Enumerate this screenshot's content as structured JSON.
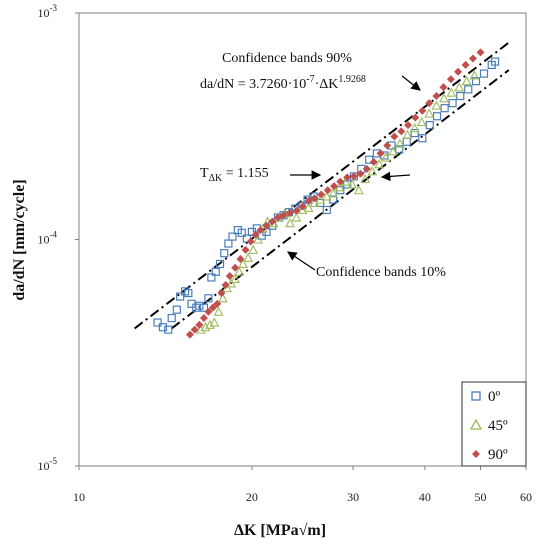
{
  "chart_data": {
    "type": "scatter",
    "xlabel": "ΔK [MPa√m]",
    "ylabel": "da/dN [mm/cycle]",
    "x_scale": "log",
    "y_scale": "log",
    "xlim": [
      10,
      60
    ],
    "ylim": [
      1e-05,
      0.001
    ],
    "x_ticks": [
      {
        "value": 10,
        "label": "10"
      },
      {
        "value": 20,
        "label": "20"
      },
      {
        "value": 30,
        "label": "30"
      },
      {
        "value": 40,
        "label": "40"
      },
      {
        "value": 50,
        "label": "50"
      },
      {
        "value": 60,
        "label": "60"
      }
    ],
    "y_ticks": [
      {
        "value": 1e-05,
        "base": "10",
        "exp": "-5"
      },
      {
        "value": 0.0001,
        "base": "10",
        "exp": "-4"
      },
      {
        "value": 0.001,
        "base": "10",
        "exp": "-3"
      }
    ],
    "grid": false,
    "legend_position": "bottom-right",
    "annotations": {
      "conf90": "Confidence bands 90%",
      "equation_prefix": "da/dN = 3.7260·10",
      "equation_exp1": "-7",
      "equation_mid": "·ΔK",
      "equation_exp2": "1.9268",
      "t_prefix": "T",
      "t_sub": "ΔK",
      "t_value": " = 1.155",
      "conf10": "Confidence bands 10%"
    },
    "lines": [
      {
        "name": "90%",
        "style": "dash-dot",
        "x": [
          12.5,
          56
        ],
        "y": [
          4.05e-05,
          0.00074
        ]
      },
      {
        "name": "10%",
        "style": "dash-dot",
        "x": [
          14.5,
          56
        ],
        "y": [
          4.05e-05,
          0.00056
        ]
      }
    ],
    "series": [
      {
        "name": "0º",
        "marker": "square",
        "color": "#4a7ebb",
        "x": [
          13.7,
          14.0,
          14.3,
          14.5,
          14.8,
          15.0,
          15.3,
          15.5,
          15.7,
          16.0,
          16.2,
          16.5,
          16.8,
          17.0,
          17.3,
          17.6,
          17.9,
          18.2,
          18.5,
          18.9,
          19.2,
          19.6,
          20.0,
          20.4,
          20.8,
          21.2,
          21.7,
          22.2,
          22.7,
          23.2,
          23.8,
          24.4,
          25.0,
          25.6,
          26.3,
          27.0,
          27.7,
          28.5,
          29.3,
          30.1,
          31.0,
          32.0,
          33.0,
          34.0,
          35.0,
          36.1,
          37.2,
          38.4,
          39.6,
          40.8,
          42.0,
          43.3,
          44.7,
          46.1,
          47.6,
          49.1,
          50.7,
          52.3,
          53.0
        ],
        "y": [
          4.3e-05,
          4.1e-05,
          4e-05,
          4.5e-05,
          4.9e-05,
          5.6e-05,
          5.9e-05,
          5.8e-05,
          5.2e-05,
          5e-05,
          5.1e-05,
          5e-05,
          5.5e-05,
          6.8e-05,
          7.2e-05,
          7.8e-05,
          8.7e-05,
          9.6e-05,
          0.000103,
          0.00011,
          0.000107,
          0.000101,
          0.000108,
          0.000112,
          0.000104,
          0.000108,
          0.000115,
          0.000125,
          0.000128,
          0.000132,
          0.000137,
          0.000141,
          0.00015,
          0.000155,
          0.000145,
          0.000135,
          0.00015,
          0.000165,
          0.000175,
          0.00019,
          0.000205,
          0.000225,
          0.00024,
          0.000235,
          0.00026,
          0.00025,
          0.00027,
          0.000295,
          0.00028,
          0.00032,
          0.00035,
          0.00038,
          0.0004,
          0.00043,
          0.00046,
          0.0005,
          0.00054,
          0.00059,
          0.00061
        ]
      },
      {
        "name": "45º",
        "marker": "triangle",
        "color": "#9bbb59",
        "x": [
          16.3,
          16.6,
          16.9,
          17.2,
          17.5,
          17.8,
          18.1,
          18.4,
          18.7,
          19.0,
          19.3,
          19.7,
          20.1,
          20.5,
          20.9,
          21.3,
          21.8,
          22.3,
          22.8,
          23.3,
          23.9,
          24.5,
          25.1,
          25.7,
          26.3,
          27.0,
          27.7,
          28.4,
          29.1,
          29.9,
          30.7,
          31.5,
          32.4,
          33.3,
          34.2,
          35.2,
          36.2,
          37.3,
          38.4,
          39.5,
          40.7,
          41.9,
          43.2,
          44.5,
          45.9,
          47.3,
          48.8
        ],
        "y": [
          4e-05,
          4.1e-05,
          4.2e-05,
          4.3e-05,
          4.8e-05,
          5.5e-05,
          6.1e-05,
          6.4e-05,
          6.7e-05,
          7.2e-05,
          7.8e-05,
          8.3e-05,
          9e-05,
          0.0001,
          0.000112,
          0.00012,
          0.000118,
          0.000125,
          0.00013,
          0.000118,
          0.000125,
          0.000135,
          0.000138,
          0.000145,
          0.00015,
          0.000155,
          0.00016,
          0.00017,
          0.00018,
          0.000175,
          0.000165,
          0.000185,
          0.0002,
          0.000215,
          0.00023,
          0.000245,
          0.000265,
          0.00029,
          0.00031,
          0.00033,
          0.00036,
          0.00039,
          0.00042,
          0.000445,
          0.00047,
          0.0005,
          0.00053
        ]
      },
      {
        "name": "90º",
        "marker": "diamond",
        "color": "#c0504d",
        "x": [
          15.6,
          15.9,
          16.2,
          16.5,
          16.8,
          17.1,
          17.4,
          17.7,
          18.0,
          18.3,
          18.7,
          19.1,
          19.5,
          19.9,
          20.3,
          20.7,
          21.2,
          21.7,
          22.2,
          22.7,
          23.3,
          23.9,
          24.5,
          25.1,
          25.7,
          26.4,
          27.1,
          27.8,
          28.5,
          29.3,
          30.1,
          30.9,
          31.7,
          32.6,
          33.5,
          34.4,
          35.4,
          36.4,
          37.4,
          38.5,
          39.6,
          40.7,
          41.9,
          43.1,
          44.4,
          45.7,
          47.1,
          48.5,
          50.0
        ],
        "y": [
          3.8e-05,
          4e-05,
          4.2e-05,
          4.5e-05,
          4.8e-05,
          5e-05,
          5.2e-05,
          5.8e-05,
          6.3e-05,
          6.9e-05,
          7.5e-05,
          8.2e-05,
          9e-05,
          9.8e-05,
          0.000105,
          0.00011,
          0.000115,
          0.00012,
          0.000125,
          0.000128,
          0.000131,
          0.000134,
          0.00014,
          0.000148,
          0.000152,
          0.000158,
          0.000165,
          0.000172,
          0.00018,
          0.000188,
          0.00019,
          0.000195,
          0.000205,
          0.00022,
          0.00024,
          0.00026,
          0.000285,
          0.0003,
          0.00032,
          0.000345,
          0.00037,
          0.0004,
          0.00043,
          0.00047,
          0.00051,
          0.00055,
          0.00059,
          0.00063,
          0.00067
        ]
      }
    ]
  }
}
